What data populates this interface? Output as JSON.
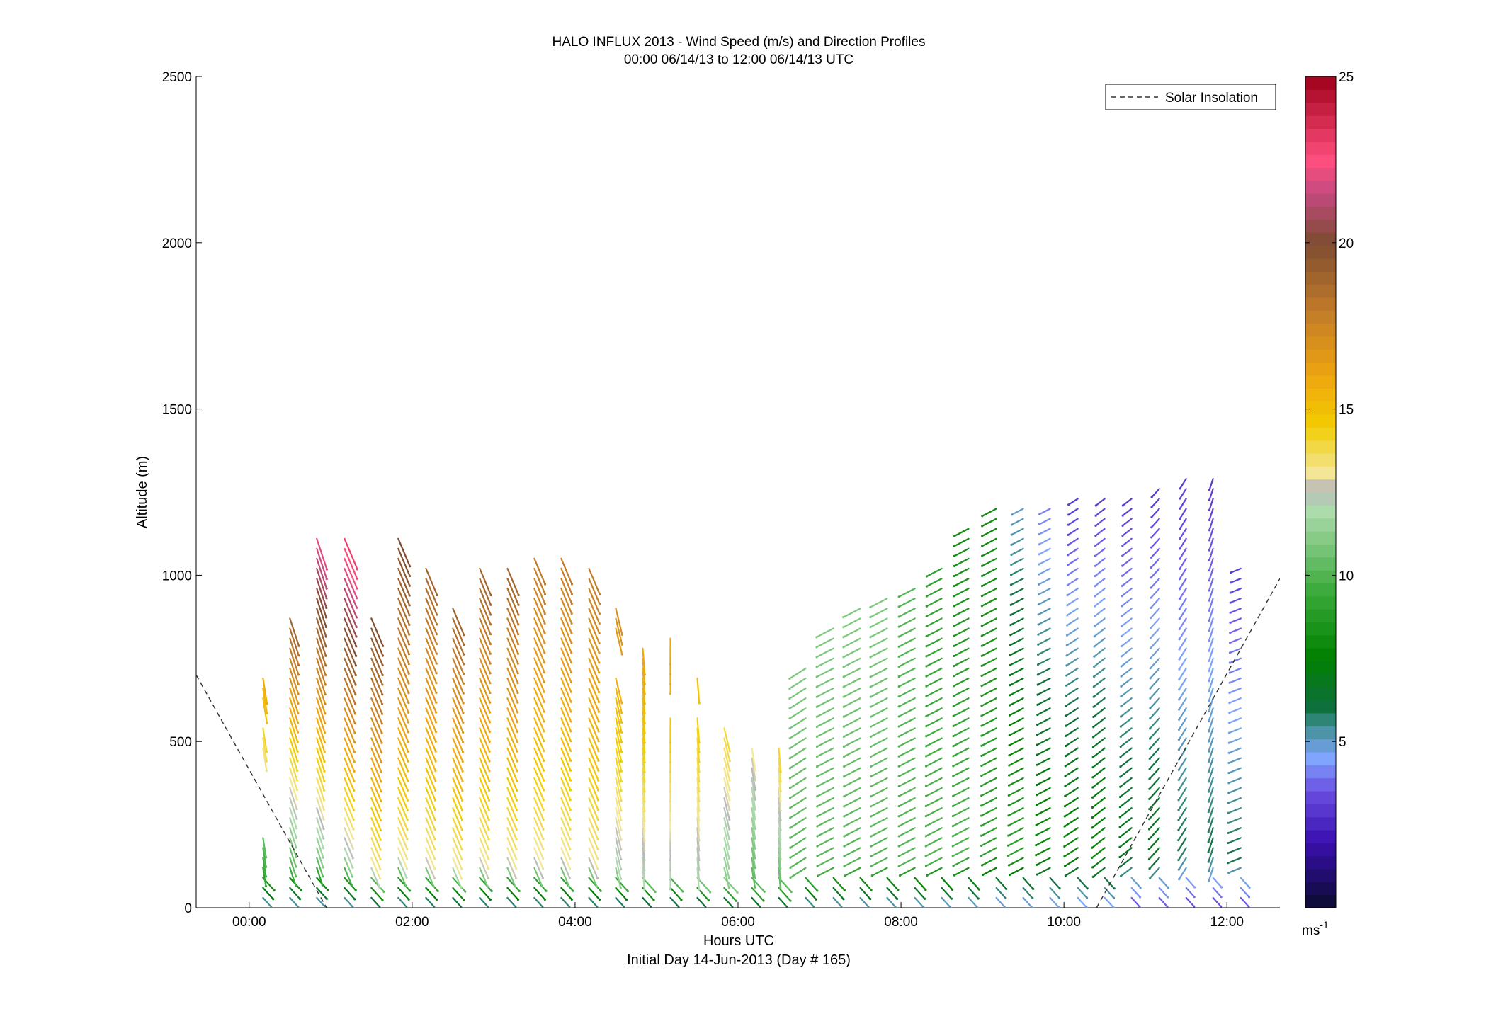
{
  "chart_data": {
    "type": "vector-field",
    "title": "HALO INFLUX 2013 - Wind Speed (m/s) and Direction Profiles",
    "subtitle": "00:00 06/14/13 to 12:00 06/14/13  UTC",
    "xlabel": "Hours UTC",
    "xlabel2": "Initial Day 14-Jun-2013 (Day # 165)",
    "ylabel": "Altitude (m)",
    "xlim": [
      -0.65,
      12.65
    ],
    "ylim": [
      0,
      2500
    ],
    "x_ticks": [
      {
        "value": 0,
        "label": "00:00"
      },
      {
        "value": 2,
        "label": "02:00"
      },
      {
        "value": 4,
        "label": "04:00"
      },
      {
        "value": 6,
        "label": "06:00"
      },
      {
        "value": 8,
        "label": "08:00"
      },
      {
        "value": 10,
        "label": "10:00"
      },
      {
        "value": 12,
        "label": "12:00"
      }
    ],
    "y_ticks": [
      {
        "value": 0,
        "label": "0"
      },
      {
        "value": 500,
        "label": "500"
      },
      {
        "value": 1000,
        "label": "1000"
      },
      {
        "value": 1500,
        "label": "1500"
      },
      {
        "value": 2000,
        "label": "2000"
      },
      {
        "value": 2500,
        "label": "2500"
      }
    ],
    "colorbar": {
      "range": [
        0,
        25
      ],
      "ticks": [
        {
          "value": 5,
          "label": "5"
        },
        {
          "value": 10,
          "label": "10"
        },
        {
          "value": 15,
          "label": "15"
        },
        {
          "value": 20,
          "label": "20"
        },
        {
          "value": 25,
          "label": "25"
        }
      ],
      "unit_label": "ms",
      "unit_exponent": "-1",
      "stops": [
        {
          "v": 0,
          "c": "#0a0a2e"
        },
        {
          "v": 2,
          "c": "#3a10b0"
        },
        {
          "v": 3.5,
          "c": "#6a4fe0"
        },
        {
          "v": 4.5,
          "c": "#7fa6ff"
        },
        {
          "v": 5.5,
          "c": "#3f8f8f"
        },
        {
          "v": 6,
          "c": "#0f6f3f"
        },
        {
          "v": 7.5,
          "c": "#008000"
        },
        {
          "v": 9.5,
          "c": "#3aaa3a"
        },
        {
          "v": 12,
          "c": "#b0ddb0"
        },
        {
          "v": 12.6,
          "c": "#b8b8b8"
        },
        {
          "v": 13,
          "c": "#f3e8a0"
        },
        {
          "v": 14.5,
          "c": "#f2cc00"
        },
        {
          "v": 16,
          "c": "#efa510"
        },
        {
          "v": 18,
          "c": "#c07a2a"
        },
        {
          "v": 20,
          "c": "#7d4c30"
        },
        {
          "v": 21.5,
          "c": "#c44a80"
        },
        {
          "v": 22.5,
          "c": "#ff4f7f"
        },
        {
          "v": 25,
          "c": "#a0001a"
        }
      ]
    },
    "legend": {
      "label": "Solar Insolation",
      "position": "top-right",
      "style": "dashed"
    },
    "solar_insolation": [
      {
        "segment": "evening",
        "points": [
          [
            -0.65,
            700
          ],
          [
            0.95,
            0
          ]
        ]
      },
      {
        "segment": "morning",
        "points": [
          [
            10.4,
            0
          ],
          [
            12.65,
            990
          ]
        ]
      }
    ],
    "arrow_spacing": {
      "time_hours": 0.333,
      "altitude_m": 30
    },
    "profiles": [
      {
        "t_start": 0.17,
        "t_end": 0.17,
        "top_m": 710,
        "gaps": [
          [
            230,
            460
          ],
          [
            560,
            610
          ]
        ],
        "speed_low": 4,
        "speed_mid": 9,
        "speed_top": 16,
        "dir": 350
      },
      {
        "t_start": 0.5,
        "t_end": 0.5,
        "top_m": 880,
        "gaps": [],
        "speed_low": 4,
        "speed_mid": 10,
        "speed_top": 19,
        "dir": 340
      },
      {
        "t_start": 0.83,
        "t_end": 0.83,
        "top_m": 1110,
        "gaps": [],
        "speed_low": 4,
        "speed_mid": 11,
        "speed_top": 22,
        "dir": 340
      },
      {
        "t_start": 1.17,
        "t_end": 1.17,
        "top_m": 1110,
        "gaps": [],
        "speed_low": 4,
        "speed_mid": 12,
        "speed_top": 23,
        "dir": 335
      },
      {
        "t_start": 1.5,
        "t_end": 1.5,
        "top_m": 880,
        "gaps": [],
        "speed_low": 4,
        "speed_mid": 13,
        "speed_top": 20,
        "dir": 335
      },
      {
        "t_start": 1.83,
        "t_end": 1.83,
        "top_m": 1110,
        "gaps": [],
        "speed_low": 4,
        "speed_mid": 13,
        "speed_top": 20,
        "dir": 335
      },
      {
        "t_start": 2.17,
        "t_end": 2.17,
        "top_m": 1030,
        "gaps": [],
        "speed_low": 4,
        "speed_mid": 13,
        "speed_top": 19,
        "dir": 335
      },
      {
        "t_start": 2.5,
        "t_end": 2.5,
        "top_m": 920,
        "gaps": [],
        "speed_low": 4,
        "speed_mid": 13,
        "speed_top": 19,
        "dir": 335
      },
      {
        "t_start": 2.83,
        "t_end": 2.83,
        "top_m": 1030,
        "gaps": [],
        "speed_low": 4,
        "speed_mid": 13,
        "speed_top": 19,
        "dir": 335
      },
      {
        "t_start": 3.17,
        "t_end": 3.17,
        "top_m": 1030,
        "gaps": [],
        "speed_low": 4,
        "speed_mid": 13,
        "speed_top": 19,
        "dir": 335
      },
      {
        "t_start": 3.5,
        "t_end": 3.5,
        "top_m": 1060,
        "gaps": [],
        "speed_low": 4,
        "speed_mid": 13,
        "speed_top": 18,
        "dir": 335
      },
      {
        "t_start": 3.83,
        "t_end": 3.83,
        "top_m": 1060,
        "gaps": [],
        "speed_low": 4,
        "speed_mid": 13,
        "speed_top": 18,
        "dir": 335
      },
      {
        "t_start": 4.17,
        "t_end": 4.17,
        "top_m": 1040,
        "gaps": [],
        "speed_low": 4,
        "speed_mid": 13,
        "speed_top": 18,
        "dir": 335
      },
      {
        "t_start": 4.5,
        "t_end": 4.5,
        "top_m": 900,
        "gaps": [
          [
            700,
            820
          ]
        ],
        "speed_low": 4,
        "speed_mid": 12,
        "speed_top": 17,
        "dir": 345
      },
      {
        "t_start": 4.83,
        "t_end": 4.83,
        "top_m": 780,
        "gaps": [],
        "speed_low": 4,
        "speed_mid": 12,
        "speed_top": 16,
        "dir": 355
      },
      {
        "t_start": 5.17,
        "t_end": 5.17,
        "top_m": 820,
        "gaps": [
          [
            580,
            690
          ]
        ],
        "speed_low": 4,
        "speed_mid": 12,
        "speed_top": 16,
        "dir": 0
      },
      {
        "t_start": 5.5,
        "t_end": 5.5,
        "top_m": 710,
        "gaps": [
          [
            600,
            680
          ]
        ],
        "speed_low": 4,
        "speed_mid": 12,
        "speed_top": 15,
        "dir": 355
      },
      {
        "t_start": 5.83,
        "t_end": 5.83,
        "top_m": 550,
        "gaps": [],
        "speed_low": 4,
        "speed_mid": 11,
        "speed_top": 14,
        "dir": 345
      },
      {
        "t_start": 6.17,
        "t_end": 6.17,
        "top_m": 480,
        "gaps": [],
        "speed_low": 4,
        "speed_mid": 10,
        "speed_top": 13,
        "dir": 350
      },
      {
        "t_start": 6.5,
        "t_end": 6.5,
        "top_m": 480,
        "gaps": [],
        "speed_low": 4,
        "speed_mid": 10,
        "speed_top": 14,
        "dir": 355
      },
      {
        "t_start": 6.83,
        "t_end": 6.83,
        "top_m": 740,
        "gaps": [],
        "speed_low": 4,
        "speed_mid": 10,
        "speed_top": 11,
        "dir": 60
      },
      {
        "t_start": 7.17,
        "t_end": 7.17,
        "top_m": 850,
        "gaps": [],
        "speed_low": 4,
        "speed_mid": 10,
        "speed_top": 11,
        "dir": 65
      },
      {
        "t_start": 7.5,
        "t_end": 7.5,
        "top_m": 910,
        "gaps": [],
        "speed_low": 4,
        "speed_mid": 10,
        "speed_top": 11,
        "dir": 65
      },
      {
        "t_start": 7.83,
        "t_end": 7.83,
        "top_m": 940,
        "gaps": [],
        "speed_low": 4,
        "speed_mid": 10,
        "speed_top": 11,
        "dir": 65
      },
      {
        "t_start": 8.17,
        "t_end": 8.17,
        "top_m": 970,
        "gaps": [],
        "speed_low": 4,
        "speed_mid": 10,
        "speed_top": 10,
        "dir": 65
      },
      {
        "t_start": 8.5,
        "t_end": 8.5,
        "top_m": 1040,
        "gaps": [],
        "speed_low": 4,
        "speed_mid": 10,
        "speed_top": 9,
        "dir": 65
      },
      {
        "t_start": 8.83,
        "t_end": 8.83,
        "top_m": 1140,
        "gaps": [],
        "speed_low": 4,
        "speed_mid": 10,
        "speed_top": 8,
        "dir": 65
      },
      {
        "t_start": 9.17,
        "t_end": 9.17,
        "top_m": 1200,
        "gaps": [],
        "speed_low": 4,
        "speed_mid": 9,
        "speed_top": 8,
        "dir": 65
      },
      {
        "t_start": 9.5,
        "t_end": 9.5,
        "top_m": 1200,
        "gaps": [],
        "speed_low": 4,
        "speed_mid": 9,
        "speed_top": 5,
        "dir": 65
      },
      {
        "t_start": 9.83,
        "t_end": 9.83,
        "top_m": 1210,
        "gaps": [],
        "speed_low": 4,
        "speed_mid": 8,
        "speed_top": 4,
        "dir": 65
      },
      {
        "t_start": 10.17,
        "t_end": 10.17,
        "top_m": 1230,
        "gaps": [],
        "speed_low": 4,
        "speed_mid": 8,
        "speed_top": 3,
        "dir": 60
      },
      {
        "t_start": 10.5,
        "t_end": 10.5,
        "top_m": 1250,
        "gaps": [],
        "speed_low": 4,
        "speed_mid": 8,
        "speed_top": 3,
        "dir": 55
      },
      {
        "t_start": 10.83,
        "t_end": 10.83,
        "top_m": 1240,
        "gaps": [],
        "speed_low": 3,
        "speed_mid": 7,
        "speed_top": 3,
        "dir": 55
      },
      {
        "t_start": 11.17,
        "t_end": 11.17,
        "top_m": 1260,
        "gaps": [],
        "speed_low": 3,
        "speed_mid": 7,
        "speed_top": 3,
        "dir": 45
      },
      {
        "t_start": 11.5,
        "t_end": 11.5,
        "top_m": 1300,
        "gaps": [],
        "speed_low": 3,
        "speed_mid": 6,
        "speed_top": 3,
        "dir": 35
      },
      {
        "t_start": 11.83,
        "t_end": 11.83,
        "top_m": 1300,
        "gaps": [],
        "speed_low": 3,
        "speed_mid": 6,
        "speed_top": 3,
        "dir": 20
      },
      {
        "t_start": 12.17,
        "t_end": 12.17,
        "top_m": 1040,
        "gaps": [],
        "speed_low": 3,
        "speed_mid": 6,
        "speed_top": 3,
        "dir": 70
      }
    ]
  }
}
